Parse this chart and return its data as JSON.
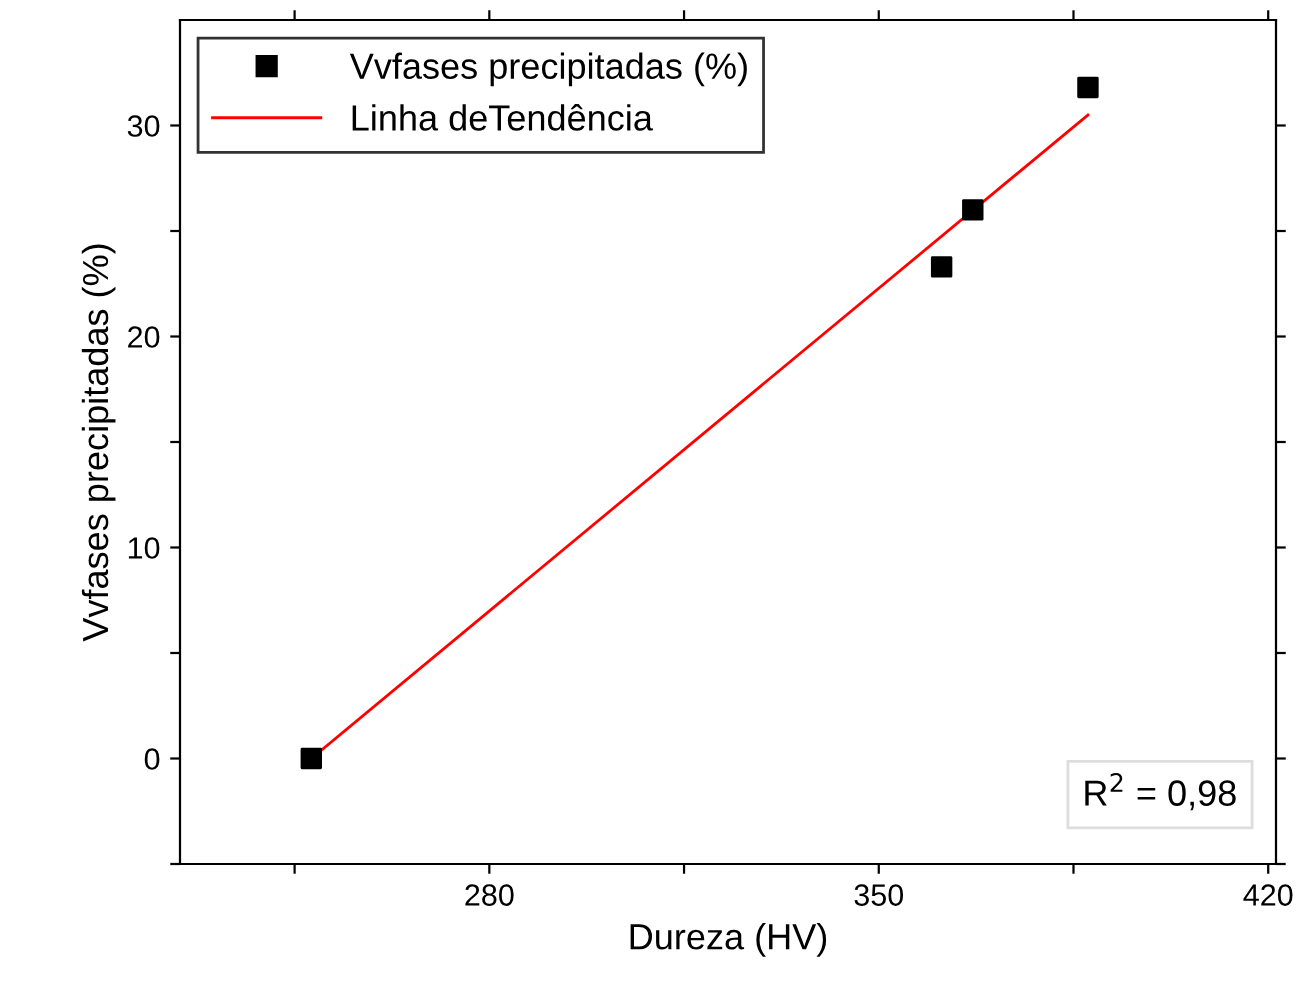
{
  "chart_data": {
    "type": "scatter",
    "xlabel": "Dureza (HV)",
    "ylabel": "Vvfases precipitadas (%)",
    "xlim": [
      224.4,
      421.4
    ],
    "xticks": [
      {
        "value": 245,
        "label": null
      },
      280,
      {
        "value": 315,
        "label": null
      },
      350,
      {
        "value": 385,
        "label": null
      },
      420
    ],
    "ylim": [
      -5,
      35
    ],
    "yticks": [
      {
        "value": -5,
        "label": null
      },
      0,
      {
        "value": 5,
        "label": null
      },
      10,
      {
        "value": 15,
        "label": null
      },
      20,
      {
        "value": 25,
        "label": null
      },
      30
    ],
    "series": [
      {
        "name": "Vvfases precipitadas (%)",
        "color": "#000000",
        "marker": "square",
        "x": [
          248,
          361.3,
          366.9,
          387.6
        ],
        "values": [
          0,
          23.3,
          26.0,
          31.8
        ]
      },
      {
        "name": "Linha deTendência",
        "type": "line",
        "color": "#ff0000",
        "marker": "none",
        "line_style": "solid",
        "x": [
          248,
          387.6
        ],
        "values": [
          0,
          30.5
        ]
      }
    ],
    "annotations": [
      "R$^{2}$ = 0,98"
    ],
    "legend": "top left",
    "grid": false
  }
}
